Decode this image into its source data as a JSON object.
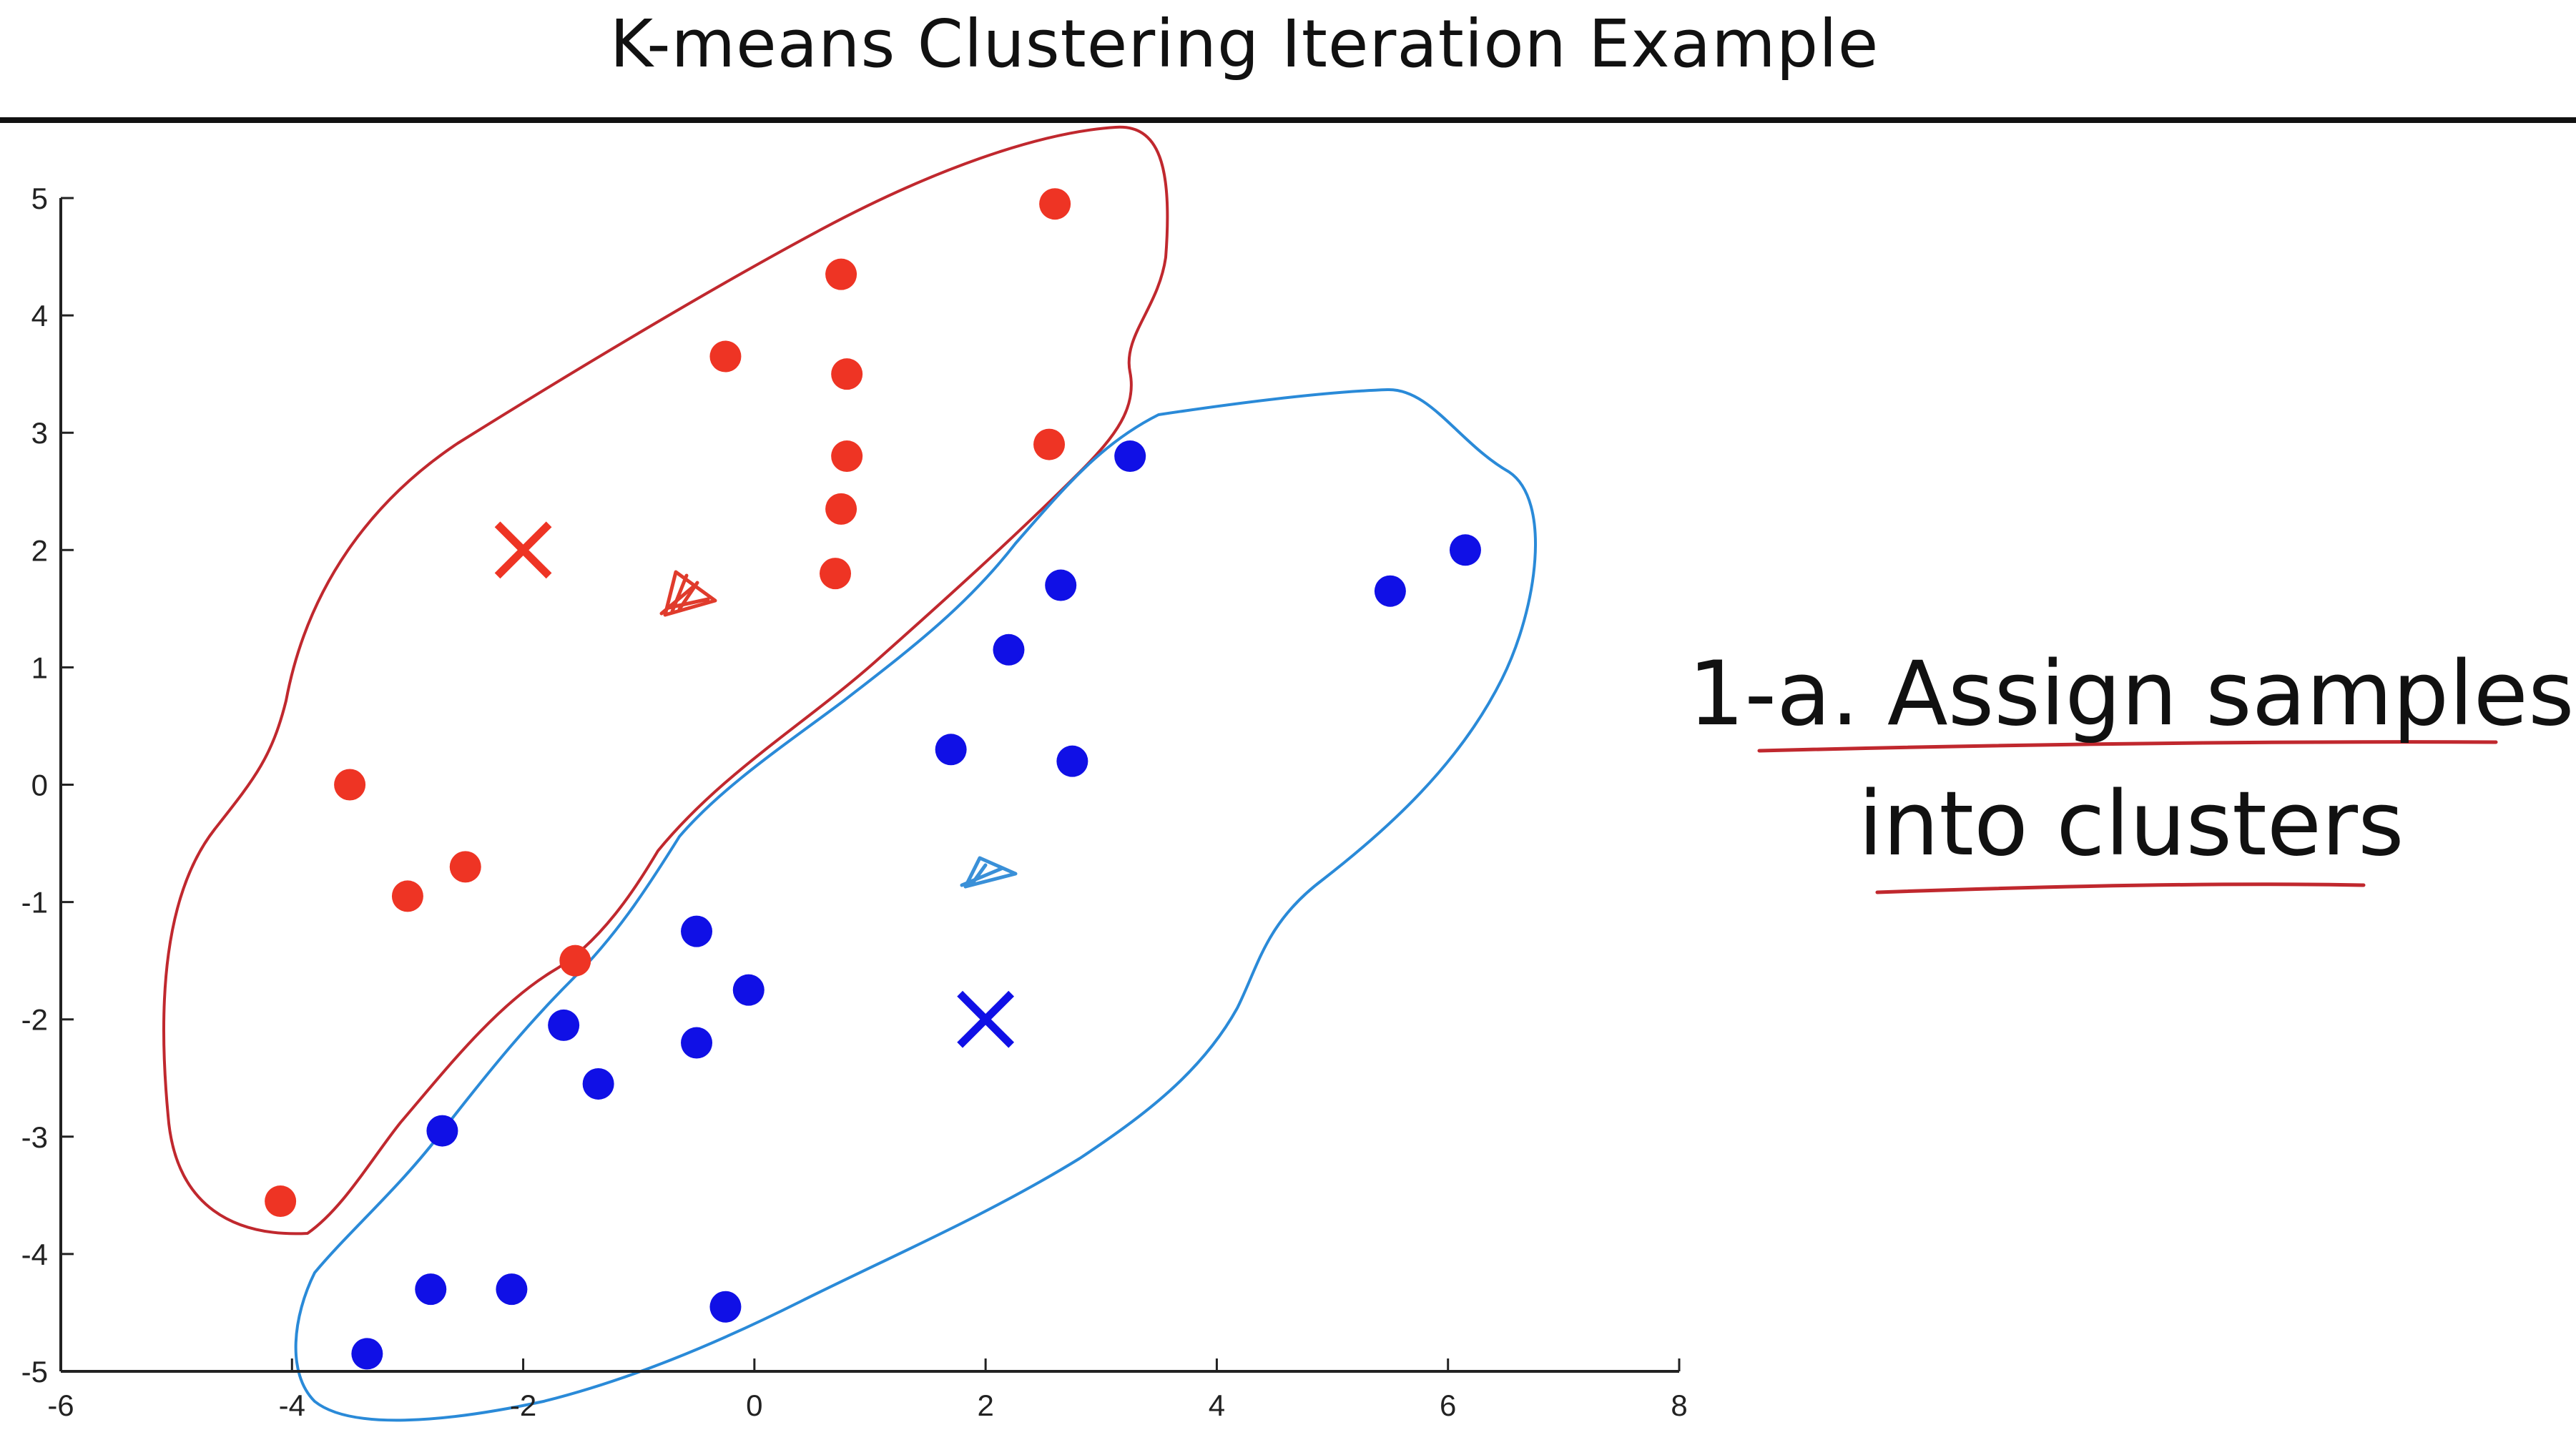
{
  "page": {
    "title": "K-means Clustering Iteration Example",
    "caption_line1": "1-a. Assign samples",
    "caption_line2": "into clusters"
  },
  "colors": {
    "red_cluster": "#ee3424",
    "blue_cluster": "#1010e6",
    "red_outline": "#c0282e",
    "blue_outline": "#2a8ad8",
    "axis": "#222222"
  },
  "chart_data": {
    "type": "scatter",
    "title": "",
    "xlabel": "",
    "ylabel": "",
    "xlim": [
      -6,
      8
    ],
    "ylim": [
      -5,
      5
    ],
    "xticks": [
      -6,
      -4,
      -2,
      0,
      2,
      4,
      6,
      8
    ],
    "yticks": [
      -5,
      -4,
      -3,
      -2,
      -1,
      0,
      1,
      2,
      3,
      4,
      5
    ],
    "grid": false,
    "series": [
      {
        "color": "#ee3424",
        "marker": "circle",
        "points": [
          [
            2.6,
            4.95
          ],
          [
            0.75,
            4.35
          ],
          [
            -0.25,
            3.65
          ],
          [
            0.8,
            3.5
          ],
          [
            0.8,
            2.8
          ],
          [
            2.55,
            2.9
          ],
          [
            0.75,
            2.35
          ],
          [
            0.7,
            1.8
          ],
          [
            -3.5,
            0.0
          ],
          [
            -2.5,
            -0.7
          ],
          [
            -3.0,
            -0.95
          ],
          [
            -1.55,
            -1.5
          ],
          [
            -4.1,
            -3.55
          ]
        ]
      },
      {
        "color": "#1010e6",
        "marker": "circle",
        "points": [
          [
            3.25,
            2.8
          ],
          [
            2.65,
            1.7
          ],
          [
            2.2,
            1.15
          ],
          [
            1.7,
            0.3
          ],
          [
            2.75,
            0.2
          ],
          [
            5.5,
            1.65
          ],
          [
            6.15,
            2.0
          ],
          [
            -0.5,
            -1.25
          ],
          [
            -0.05,
            -1.75
          ],
          [
            -1.65,
            -2.05
          ],
          [
            -0.5,
            -2.2
          ],
          [
            -1.35,
            -2.55
          ],
          [
            -2.7,
            -2.95
          ],
          [
            -2.8,
            -4.3
          ],
          [
            -2.1,
            -4.3
          ],
          [
            -0.25,
            -4.45
          ],
          [
            -3.35,
            -4.85
          ]
        ]
      }
    ],
    "centroids": [
      {
        "color": "#ee3424",
        "x": -2.0,
        "y": 2.0,
        "marker": "x"
      },
      {
        "color": "#1010e6",
        "x": 2.0,
        "y": -2.0,
        "marker": "x"
      }
    ]
  }
}
